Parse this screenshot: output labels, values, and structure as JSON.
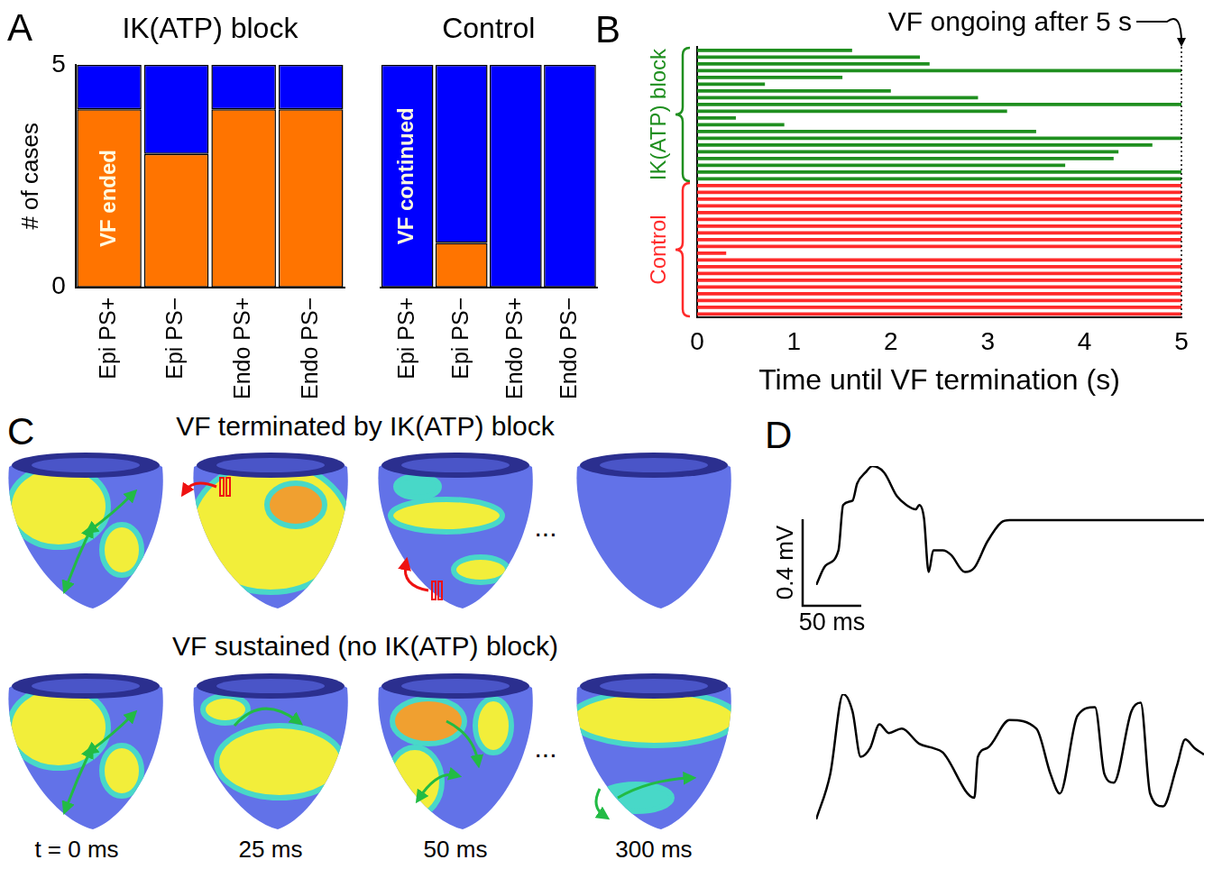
{
  "chart_data": [
    {
      "panel_label": "A",
      "type": "bar",
      "stacked": true,
      "ylabel": "# of cases",
      "ylim": [
        0,
        5
      ],
      "yticks": [
        0,
        5
      ],
      "categories": [
        "Epi PS+",
        "Epi PS−",
        "Endo PS+",
        "Endo PS−"
      ],
      "groups": [
        {
          "title": "IK(ATP) block",
          "series": [
            {
              "name": "VF ended",
              "color": "#ff7400",
              "values": [
                4,
                3,
                4,
                4
              ]
            },
            {
              "name": "VF continued",
              "color": "#0000ff",
              "values": [
                1,
                2,
                1,
                1
              ]
            }
          ]
        },
        {
          "title": "Control",
          "series": [
            {
              "name": "VF ended",
              "color": "#ff7400",
              "values": [
                0,
                1,
                0,
                0
              ]
            },
            {
              "name": "VF continued",
              "color": "#0000ff",
              "values": [
                5,
                4,
                5,
                5
              ]
            }
          ]
        }
      ]
    },
    {
      "panel_label": "B",
      "type": "bar",
      "orientation": "horizontal",
      "title": "VF ongoing after 5 s",
      "xlabel": "Time until VF termination (s)",
      "xlim": [
        0,
        5
      ],
      "xticks": [
        0,
        1,
        2,
        3,
        4,
        5
      ],
      "tick_labels": "x",
      "series": [
        {
          "name": "IK(ATP) block",
          "color": "#1f8f1f",
          "values": [
            1.6,
            2.3,
            2.4,
            5,
            1.5,
            0.7,
            2.0,
            2.9,
            5,
            3.2,
            0.4,
            0.9,
            3.5,
            5,
            4.7,
            4.35,
            4.3,
            3.8,
            5,
            5
          ]
        },
        {
          "name": "Control",
          "color": "#ff2a2a",
          "values": [
            5,
            5,
            5,
            5,
            5,
            5,
            5,
            5,
            5,
            5,
            0.3,
            5,
            5,
            5,
            5,
            5,
            5,
            5,
            5,
            5
          ]
        }
      ]
    },
    {
      "panel_label": "D",
      "type": "line",
      "color": "#000000",
      "tick_labels": false,
      "x": [
        0,
        8,
        19,
        23,
        31,
        35,
        42,
        48,
        58,
        69,
        77,
        85,
        88,
        92,
        96,
        100,
        108,
        115,
        127,
        135,
        146,
        158,
        165,
        331
      ],
      "values": [
        -0.3,
        -0.21,
        -0.14,
        0.07,
        0.09,
        0.17,
        0.22,
        0.25,
        0.22,
        0.11,
        0.07,
        0.05,
        0.07,
        0.01,
        -0.24,
        -0.14,
        -0.14,
        -0.16,
        -0.24,
        -0.22,
        -0.1,
        -0.01,
        0,
        0
      ],
      "xlim": [
        0,
        331
      ],
      "ylim": [
        -0.3,
        0.25
      ],
      "scale_bar": {
        "x": 50,
        "x_label": "50 ms",
        "y": 0.4,
        "y_label": "0.4 mV"
      }
    },
    {
      "type": "line",
      "color": "#000000",
      "tick_labels": false,
      "x": [
        0,
        12,
        23,
        31,
        38,
        46,
        54,
        62,
        73,
        88,
        100,
        108,
        135,
        138,
        146,
        165,
        188,
        200,
        208,
        223,
        238,
        246,
        254,
        269,
        277,
        285,
        296,
        308,
        315,
        323,
        331
      ],
      "values": [
        -0.27,
        -0.06,
        0.31,
        0.23,
        0.02,
        0.06,
        0.17,
        0.13,
        0.15,
        0.08,
        0.06,
        0.04,
        -0.17,
        0.02,
        0.06,
        0.19,
        0.15,
        -0.06,
        -0.15,
        0.21,
        0.25,
        -0.06,
        -0.1,
        0.23,
        0.27,
        -0.15,
        -0.21,
        -0.02,
        0.1,
        0.06,
        0.03
      ],
      "xlim": [
        0,
        331
      ],
      "ylim": [
        -0.27,
        0.31
      ]
    }
  ],
  "diagram": {
    "panel_label": "C",
    "rows": [
      {
        "title": "VF terminated by IK(ATP) block"
      },
      {
        "title": "VF sustained (no IK(ATP) block)"
      }
    ],
    "frame_labels": [
      "t = 0 ms",
      "25 ms",
      "50 ms",
      "300 ms"
    ],
    "gap_mark": "..."
  }
}
